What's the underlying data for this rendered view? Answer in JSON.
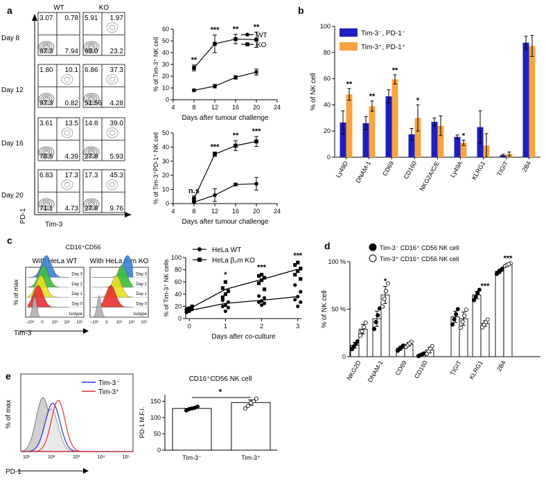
{
  "panels": {
    "a": "a",
    "b": "b",
    "c": "c",
    "d": "d",
    "e": "e"
  },
  "chart_data": [
    {
      "id": "a_flow",
      "type": "table",
      "col_headers": [
        "WT",
        "KO"
      ],
      "row_labels": [
        "Day 8",
        "Day 12",
        "Day 16",
        "Day 20"
      ],
      "xlabel": "Tim-3",
      "ylabel": "PD-1",
      "quadrants": [
        {
          "wt": [
            "3.07",
            "0.78",
            "87.3",
            "7.94"
          ],
          "ko": [
            "5.91",
            "1.97",
            "69.0",
            "23.2"
          ]
        },
        {
          "wt": [
            "1.80",
            "10.1",
            "87.3",
            "0.82"
          ],
          "ko": [
            "6.86",
            "37.3",
            "51.56",
            "4.28"
          ]
        },
        {
          "wt": [
            "3.61",
            "13.5",
            "78.5",
            "4.39"
          ],
          "ko": [
            "14.8",
            "39.0",
            "27.8",
            "5.93"
          ]
        },
        {
          "wt": [
            "6.83",
            "17.3",
            "71.1",
            "4.73"
          ],
          "ko": [
            "17.3",
            "45.3",
            "27.8",
            "9.76"
          ]
        }
      ]
    },
    {
      "id": "a_top",
      "type": "line",
      "x": [
        8,
        12,
        16,
        20
      ],
      "series": [
        {
          "name": "WT",
          "marker": "circle",
          "values": [
            8,
            11.5,
            19,
            23.5
          ],
          "err": [
            1,
            1.5,
            1.5,
            2.5
          ]
        },
        {
          "name": "KO",
          "marker": "square",
          "values": [
            27,
            47.5,
            51.5,
            51
          ],
          "err": [
            2.5,
            7.5,
            4,
            6.5
          ]
        }
      ],
      "annotations": [
        "**",
        "***",
        "**",
        "**"
      ],
      "xlabel": "Days after tumour challenge",
      "ylabel": "% of Tim-3⁺ NK cell",
      "xlim": [
        4,
        24
      ],
      "ylim": [
        0,
        60
      ],
      "xticks": [
        "4",
        "8",
        "12",
        "16",
        "20",
        "24"
      ],
      "yticks": [
        "0",
        "10",
        "20",
        "30",
        "40",
        "50",
        "60"
      ]
    },
    {
      "id": "a_bottom",
      "type": "line",
      "x": [
        8,
        12,
        16,
        20
      ],
      "series": [
        {
          "name": "WT",
          "marker": "circle",
          "values": [
            1,
            6,
            13.5,
            14
          ],
          "err": [
            1,
            4.5,
            1,
            4.5
          ]
        },
        {
          "name": "KO",
          "marker": "square",
          "values": [
            3.5,
            35,
            41,
            44
          ],
          "err": [
            2,
            1.5,
            3.5,
            3.5
          ]
        }
      ],
      "annotations": [
        "n.s",
        "***",
        "**",
        "***"
      ],
      "xlabel": "Days after tumour challenge",
      "ylabel": "% of Tim-3⁺PD-1⁺ NK cell",
      "xlim": [
        4,
        24
      ],
      "ylim": [
        0,
        50
      ],
      "xticks": [
        "4",
        "8",
        "12",
        "16",
        "20",
        "24"
      ],
      "yticks": [
        "0",
        "10",
        "20",
        "30",
        "40",
        "50"
      ]
    },
    {
      "id": "b",
      "type": "bar",
      "categories": [
        "Ly49D",
        "DNAM-1",
        "CD69",
        "CD160",
        "NKG2A/C/E",
        "Ly49A",
        "KLRG1",
        "TIGIT",
        "2B4"
      ],
      "series": [
        {
          "name": "Tim-3⁻, PD-1⁻",
          "color": "#1f1fbf",
          "values": [
            26.5,
            26,
            46.5,
            17.5,
            27,
            15.5,
            23,
            1.5,
            87.5
          ],
          "err": [
            9,
            5,
            5,
            4.5,
            3,
            1.5,
            12.5,
            0.8,
            5
          ]
        },
        {
          "name": "Tim-3⁺, PD-1⁺",
          "color": "#f7a440",
          "values": [
            48,
            39,
            59.5,
            30,
            24,
            11,
            9,
            2.5,
            85
          ],
          "err": [
            4.5,
            4,
            3.5,
            10,
            7.5,
            2,
            9,
            1.5,
            8
          ]
        }
      ],
      "annotations": [
        "**",
        "**",
        "**",
        "*",
        "",
        "*",
        "",
        "",
        ""
      ],
      "ylabel": "% of NK cell",
      "ylim": [
        0,
        100
      ],
      "yticks": [
        "0",
        "20",
        "40",
        "60",
        "80",
        "100"
      ]
    },
    {
      "id": "c_hist",
      "type": "area",
      "title": "CD16⁺CD56^dim",
      "subtitles": [
        "With HeLa WT",
        "With HeLa β₂m KO"
      ],
      "tracks": [
        "Day 3",
        "Day 2",
        "Day 1",
        "Day 0",
        "Isotype"
      ],
      "track_colors": [
        "#3d7fd8",
        "#3fbf3f",
        "#e8e020",
        "#e83030",
        "#b0b0b0"
      ],
      "xlabel": "Tim-3",
      "ylabel": "% of max",
      "xticks": [
        "−10³",
        "0",
        "10³",
        "10⁴",
        "10⁵"
      ]
    },
    {
      "id": "c_line",
      "type": "scatter",
      "series": [
        {
          "name": "HeLa WT",
          "marker": "circle",
          "mean": [
            {
              "x": 0,
              "y": 13
            },
            {
              "x": 1,
              "y": 25
            },
            {
              "x": 2,
              "y": 30
            },
            {
              "x": 3,
              "y": 36
            }
          ],
          "points": [
            [
              0,
              10
            ],
            [
              0,
              12
            ],
            [
              0,
              15
            ],
            [
              0,
              16
            ],
            [
              1,
              12
            ],
            [
              1,
              18
            ],
            [
              1,
              20
            ],
            [
              1,
              22
            ],
            [
              1,
              27
            ],
            [
              1,
              30
            ],
            [
              2,
              22
            ],
            [
              2,
              25
            ],
            [
              2,
              27
            ],
            [
              2,
              29
            ],
            [
              2,
              34
            ],
            [
              2,
              37
            ],
            [
              3,
              20
            ],
            [
              3,
              27
            ],
            [
              3,
              31
            ],
            [
              3,
              36
            ],
            [
              3,
              44
            ],
            [
              3,
              55
            ]
          ]
        },
        {
          "name": "HeLa β₂m KO",
          "marker": "square",
          "mean": [
            {
              "x": 0,
              "y": 16
            },
            {
              "x": 1,
              "y": 48
            },
            {
              "x": 2,
              "y": 64
            },
            {
              "x": 3,
              "y": 81
            }
          ],
          "points": [
            [
              0,
              13
            ],
            [
              0,
              17
            ],
            [
              0,
              20
            ],
            [
              1,
              35
            ],
            [
              1,
              40
            ],
            [
              1,
              45
            ],
            [
              1,
              50
            ],
            [
              1,
              60
            ],
            [
              2,
              48
            ],
            [
              2,
              58
            ],
            [
              2,
              63
            ],
            [
              2,
              67
            ],
            [
              2,
              70
            ],
            [
              2,
              72
            ],
            [
              3,
              65
            ],
            [
              3,
              72
            ],
            [
              3,
              78
            ],
            [
              3,
              82
            ],
            [
              3,
              88
            ],
            [
              3,
              92
            ]
          ]
        }
      ],
      "annotations": [
        "",
        "*",
        "***",
        "***"
      ],
      "xlabel": "Days after co-culture",
      "ylabel": "% of Tim-3⁺ NK cells",
      "xlim": [
        -0.1,
        3.1
      ],
      "ylim": [
        0,
        100
      ],
      "xticks": [
        "0",
        "1",
        "2",
        "3"
      ],
      "yticks": [
        "0",
        "20",
        "40",
        "60",
        "80",
        "100"
      ]
    },
    {
      "id": "d",
      "type": "bar",
      "categories": [
        "NKG2D",
        "DNAM-1",
        "CD69",
        "CD160",
        "TIGIT",
        "KLRG1",
        "2B4"
      ],
      "series": [
        {
          "name": "Tim-3⁻ CD16⁺ CD56^dim NK cell",
          "marker": "filled",
          "values": [
            12,
            40,
            9,
            2,
            42,
            65,
            90
          ],
          "err": [
            3,
            8,
            2,
            1,
            6,
            4,
            2
          ]
        },
        {
          "name": "Tim-3⁺ CD16⁺ CD56^dim NK cell",
          "marker": "open",
          "values": [
            29,
            65,
            13,
            7,
            40,
            35,
            97
          ],
          "err": [
            5,
            9,
            2,
            3,
            7,
            3,
            1
          ]
        }
      ],
      "annotations": [
        "",
        "*",
        "",
        "",
        "",
        "***",
        "***"
      ],
      "ylabel": "% of NK cell",
      "ylim": [
        0,
        100
      ],
      "yticks": [
        "0",
        "50 %",
        "100 %"
      ]
    },
    {
      "id": "e_hist",
      "type": "area",
      "legend": [
        "Tim-3⁻",
        "Tim-3⁺"
      ],
      "legend_colors": [
        "#3030d0",
        "#e03030"
      ],
      "xlabel": "PD-1",
      "ylabel": "% of max",
      "xticks": [
        "10¹",
        "10²",
        "10³",
        "10⁴",
        "10⁵"
      ]
    },
    {
      "id": "e_bar",
      "type": "bar",
      "title": "CD16⁺CD56^dim NK cell",
      "categories": [
        "Tim-3⁻",
        "Tim-3⁺"
      ],
      "values": [
        128,
        146
      ],
      "err": [
        3,
        8
      ],
      "points": [
        [
          122,
          126,
          128,
          130,
          133
        ],
        [
          128,
          136,
          145,
          150,
          158
        ]
      ],
      "annotation": "*",
      "ylabel": "PD-1 M.F.I.",
      "ylim": [
        0,
        170
      ],
      "yticks": [
        "0",
        "50",
        "100",
        "150"
      ]
    }
  ]
}
